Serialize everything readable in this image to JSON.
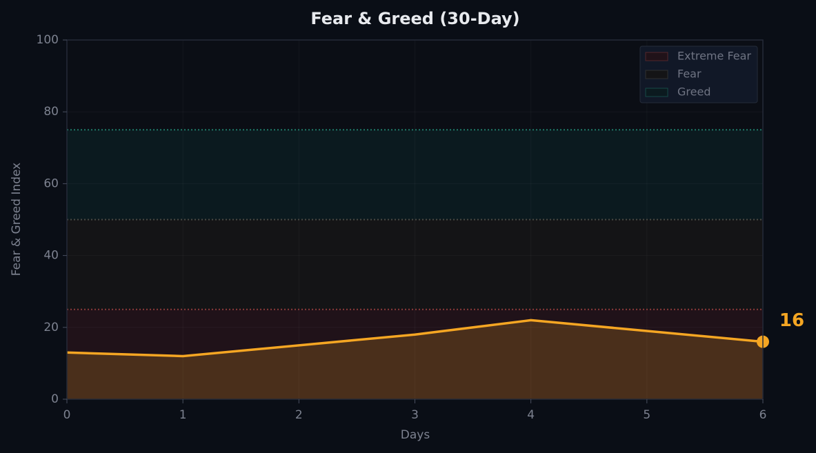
{
  "chart_data": {
    "type": "line",
    "title": "Fear & Greed (30-Day)",
    "xlabel": "Days",
    "ylabel": "Fear & Greed Index",
    "x": [
      0,
      1,
      2,
      3,
      4,
      5,
      6
    ],
    "series": [
      {
        "name": "Fear & Greed",
        "color": "#f5a623",
        "values": [
          13,
          12,
          15,
          18,
          22,
          19,
          16
        ]
      }
    ],
    "xlim": [
      0,
      6
    ],
    "xticks": [
      0,
      1,
      2,
      3,
      4,
      5,
      6
    ],
    "ylim": [
      0,
      100
    ],
    "yticks": [
      0,
      20,
      40,
      60,
      80,
      100
    ],
    "grid": true,
    "legend": "upper right",
    "bands": [
      {
        "name": "Extreme Fear",
        "range": [
          0,
          25
        ],
        "color": "#201219",
        "line_color": "#8b3a3a"
      },
      {
        "name": "Fear",
        "range": [
          25,
          50
        ],
        "color": "#141416",
        "line_color": "#4a4a44"
      },
      {
        "name": "Greed",
        "range": [
          50,
          75
        ],
        "color": "#0b1a1f",
        "line_color": "#1f7a6a"
      }
    ]
  }
}
